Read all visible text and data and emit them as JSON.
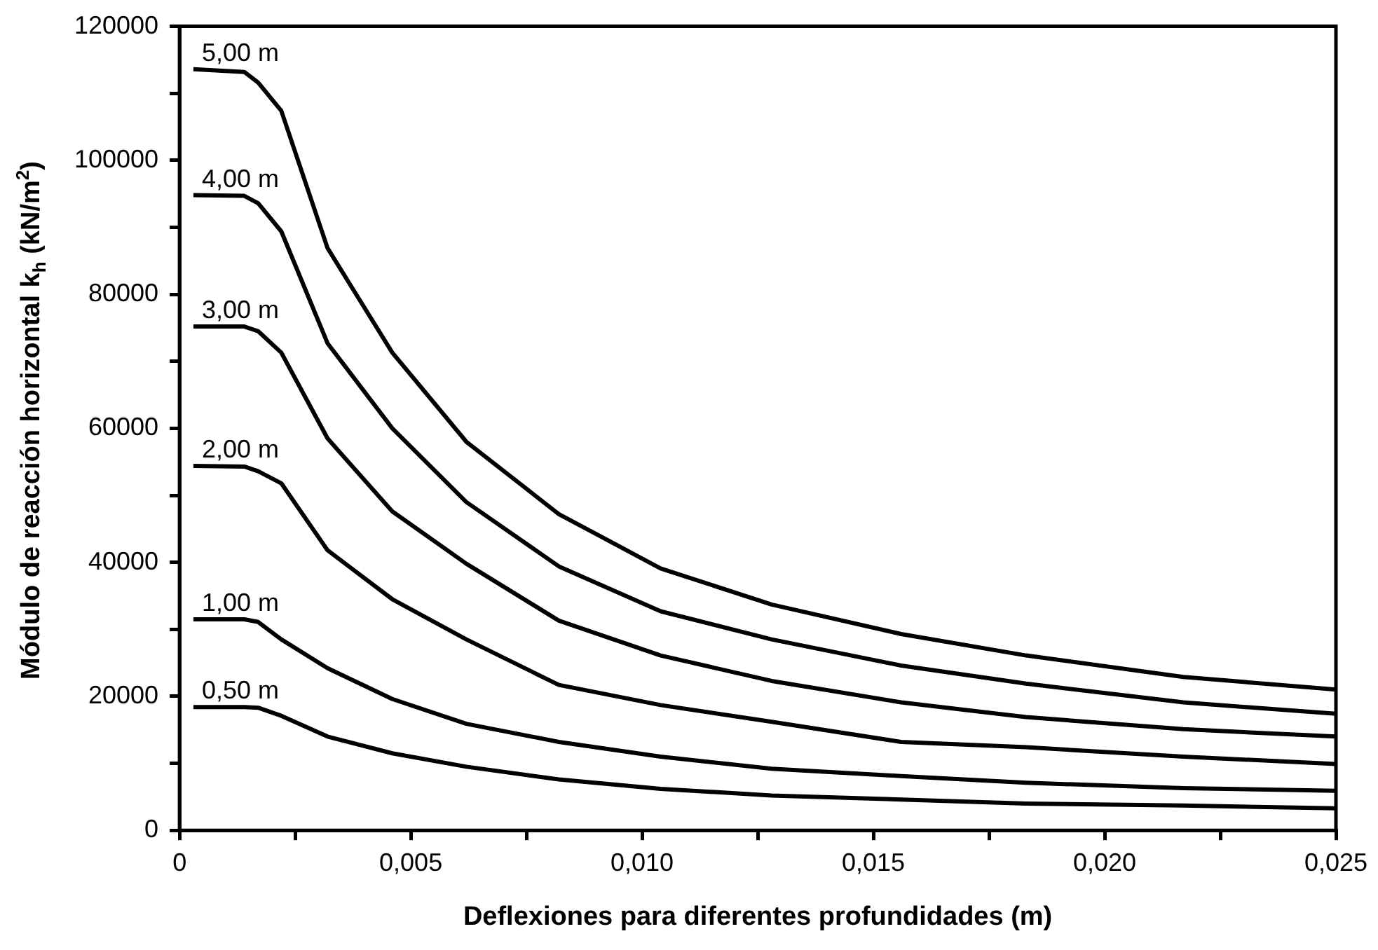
{
  "chart_data": {
    "type": "line",
    "xlabel": "Deflexiones para diferentes profundidades (m)",
    "ylabel": "Módulo de reacción horizontal k$_{h}$ (kN/m$^{2}$)",
    "x": [
      0.0003,
      0.0014,
      0.0017,
      0.0022,
      0.0032,
      0.0046,
      0.0062,
      0.0082,
      0.0104,
      0.0128,
      0.0156,
      0.0183,
      0.0217,
      0.025
    ],
    "series": [
      {
        "name": "5,00 m",
        "color": "#000000",
        "values": [
          113600,
          113200,
          111600,
          107400,
          86900,
          71300,
          58000,
          47200,
          39100,
          33700,
          29300,
          26100,
          22900,
          21000
        ]
      },
      {
        "name": "4,00 m",
        "color": "#000000",
        "values": [
          94800,
          94700,
          93600,
          89400,
          72700,
          60000,
          49000,
          39400,
          32700,
          28500,
          24600,
          21900,
          19100,
          17400
        ]
      },
      {
        "name": "3,00 m",
        "color": "#000000",
        "values": [
          75200,
          75200,
          74500,
          71300,
          58500,
          47600,
          39800,
          31300,
          26100,
          22300,
          19100,
          16900,
          15100,
          14000
        ]
      },
      {
        "name": "2,00 m",
        "color": "#000000",
        "values": [
          54400,
          54300,
          53600,
          51800,
          41800,
          34500,
          28500,
          21700,
          18700,
          16200,
          13200,
          12400,
          11000,
          9900
        ]
      },
      {
        "name": "1,00 m",
        "color": "#000000",
        "values": [
          31500,
          31500,
          31100,
          28500,
          24200,
          19600,
          15900,
          13200,
          11000,
          9200,
          8100,
          7100,
          6300,
          5900
        ]
      },
      {
        "name": "0,50 m",
        "color": "#000000",
        "values": [
          18400,
          18400,
          18300,
          17100,
          14000,
          11500,
          9500,
          7600,
          6200,
          5200,
          4600,
          4000,
          3700,
          3300
        ]
      }
    ],
    "xlim": [
      0,
      0.025
    ],
    "ylim": [
      0,
      120000
    ],
    "xticks": [
      0,
      {
        "value": 0.0025,
        "label": null
      },
      {
        "value": 0.005,
        "label": "0,005"
      },
      {
        "value": 0.0075,
        "label": null
      },
      {
        "value": 0.01,
        "label": "0,010"
      },
      {
        "value": 0.0125,
        "label": null
      },
      {
        "value": 0.015,
        "label": "0,015"
      },
      {
        "value": 0.0175,
        "label": null
      },
      {
        "value": 0.02,
        "label": "0,020"
      },
      {
        "value": 0.0225,
        "label": null
      },
      {
        "value": 0.025,
        "label": "0,025"
      }
    ],
    "yticks": [
      0,
      {
        "value": 10000,
        "label": null
      },
      20000,
      {
        "value": 30000,
        "label": null
      },
      40000,
      {
        "value": 50000,
        "label": null
      },
      60000,
      {
        "value": 70000,
        "label": null
      },
      80000,
      {
        "value": 90000,
        "label": null
      },
      100000,
      {
        "value": 110000,
        "label": null
      },
      120000
    ],
    "grid": false,
    "legend": false,
    "marker": "none",
    "line_style": "solid"
  }
}
